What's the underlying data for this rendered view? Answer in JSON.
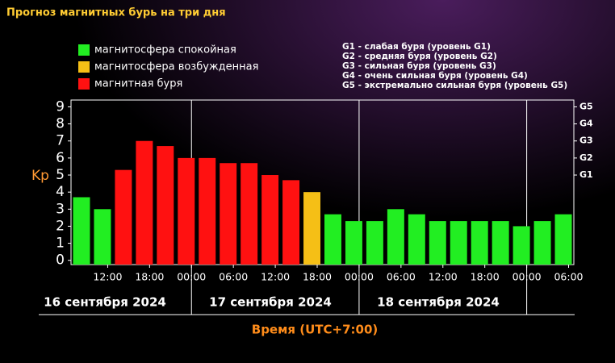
{
  "chart_data": {
    "type": "bar",
    "title": "Прогноз магнитных бурь на три дня",
    "ylabel": "Kp",
    "xlabel": "Время (UTC+7:00)",
    "legend": [
      {
        "name": "магнитосфера спокойная",
        "color": "#22ee22"
      },
      {
        "name": "магнитосфера возбужденная",
        "color": "#f5bf16"
      },
      {
        "name": "магнитная буря",
        "color": "#ff1111"
      }
    ],
    "scale_notes": [
      "G1 - слабая буря (уровень G1)",
      "G2 - средняя буря (уровень G2)",
      "G3 - сильная буря (уровень G3)",
      "G4 - очень сильная буря (уровень G4)",
      "G5 - экстремально сильная буря (уровень G5)"
    ],
    "categories": [
      null,
      null,
      null,
      null,
      null,
      null,
      null,
      null,
      null,
      null,
      null,
      null,
      null,
      null,
      null,
      null,
      null,
      null,
      null,
      null,
      null,
      null,
      null,
      null
    ],
    "values": [
      3.7,
      3.0,
      5.3,
      7.0,
      6.7,
      6.0,
      6.0,
      5.7,
      5.7,
      5.0,
      4.7,
      4.0,
      2.7,
      2.3,
      2.3,
      3.0,
      2.7,
      2.3,
      2.3,
      2.3,
      2.3,
      2.0,
      2.3,
      2.7
    ],
    "colors": [
      "#22ee22",
      "#22ee22",
      "#ff1111",
      "#ff1111",
      "#ff1111",
      "#ff1111",
      "#ff1111",
      "#ff1111",
      "#ff1111",
      "#ff1111",
      "#ff1111",
      "#f5bf16",
      "#22ee22",
      "#22ee22",
      "#22ee22",
      "#22ee22",
      "#22ee22",
      "#22ee22",
      "#22ee22",
      "#22ee22",
      "#22ee22",
      "#22ee22",
      "#22ee22",
      "#22ee22"
    ],
    "time_labels": [
      "12:00",
      "18:00",
      "00:00",
      "06:00",
      "12:00",
      "18:00",
      "00:00",
      "06:00",
      "12:00",
      "18:00",
      "00:00",
      "06:00"
    ],
    "day_labels": [
      "16 сентября 2024",
      "17 сентября 2024",
      "18 сентября 2024"
    ],
    "ylim": [
      -0.25,
      9.4
    ],
    "yticks": [
      0,
      1,
      2,
      3,
      4,
      5,
      6,
      7,
      8,
      9
    ],
    "y2lim": [
      -0.25,
      9.4
    ],
    "y2ticks": [
      {
        "value": 5,
        "label": "G1"
      },
      {
        "value": 6,
        "label": "G2"
      },
      {
        "value": 7,
        "label": "G3"
      },
      {
        "value": 8,
        "label": "G4"
      },
      {
        "value": 9,
        "label": "G5"
      }
    ]
  }
}
